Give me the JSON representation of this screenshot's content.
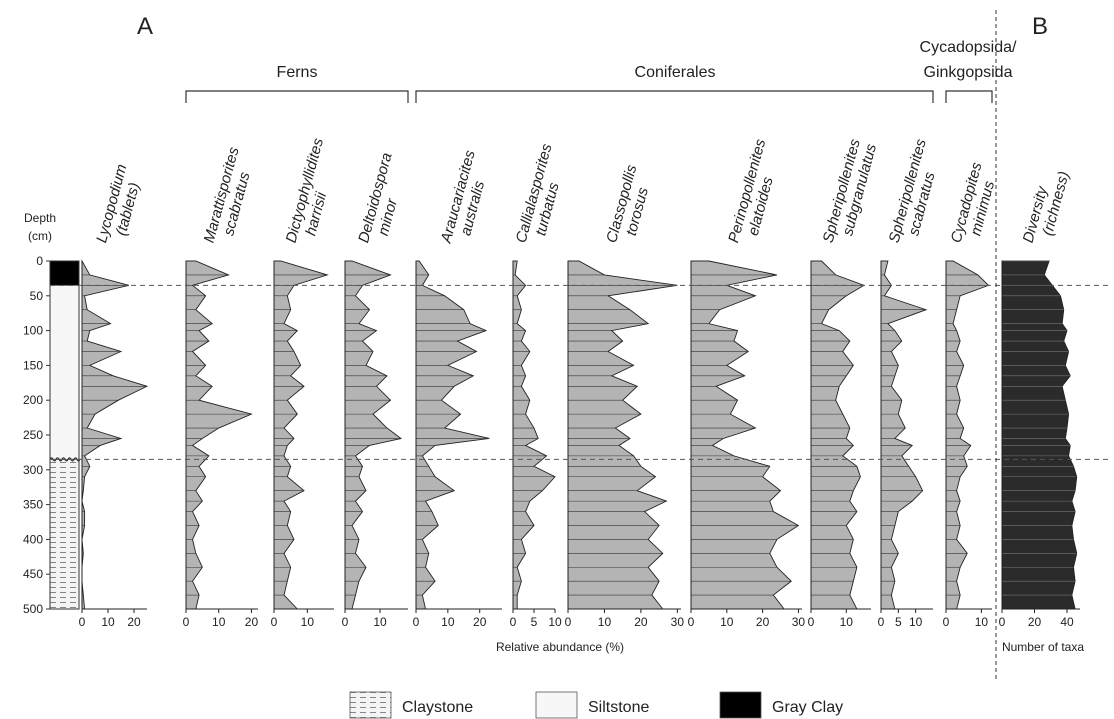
{
  "figure": {
    "panel_a": "A",
    "panel_b": "B",
    "groups": [
      "Ferns",
      "Coniferales",
      "Cycadopsida/\nGinkgopsida"
    ],
    "depth_label": [
      "Depth",
      "(cm)"
    ],
    "x_axis_label": "Relative abundance (%)",
    "diversity_axis_label": "Number of taxa",
    "legend": [
      {
        "label": "Claystone",
        "pattern": "claystone"
      },
      {
        "label": "Siltstone",
        "pattern": "siltstone"
      },
      {
        "label": "Gray Clay",
        "pattern": "gray-clay"
      }
    ],
    "colors": {
      "curve_fill": "#b4b4b4",
      "diversity_fill": "#2b2b2b",
      "hatch": "#555555",
      "gray_clay": "#000000"
    }
  },
  "chart_data": {
    "type": "area",
    "depth_axis": {
      "title": "Depth (cm)",
      "ylim": [
        0,
        500
      ],
      "ticks": [
        0,
        50,
        100,
        150,
        200,
        250,
        300,
        350,
        400,
        450,
        500
      ]
    },
    "depths": [
      0,
      20,
      35,
      50,
      70,
      90,
      100,
      115,
      130,
      150,
      165,
      180,
      200,
      220,
      240,
      255,
      265,
      280,
      295,
      310,
      330,
      345,
      360,
      380,
      400,
      420,
      440,
      460,
      480,
      500
    ],
    "horizons": [
      35,
      285
    ],
    "lithology": [
      {
        "type": "Gray Clay",
        "top": 0,
        "bottom": 35
      },
      {
        "type": "Siltstone",
        "top": 35,
        "bottom": 285
      },
      {
        "type": "Claystone",
        "top": 285,
        "bottom": 500
      }
    ],
    "series": [
      {
        "name": "Lycopodium (tablets)",
        "group": "",
        "xlim": [
          0,
          25
        ],
        "ticks": [
          0,
          10,
          20
        ],
        "values": [
          0,
          3,
          18,
          1,
          2,
          11,
          3,
          2,
          15,
          3,
          12,
          25,
          14,
          5,
          2,
          15,
          7,
          1,
          3,
          1,
          0.5,
          0,
          1,
          1,
          0,
          0.5,
          0,
          0,
          0.5,
          1
        ]
      },
      {
        "name": "Marattisporites scabratus",
        "group": "Ferns",
        "xlim": [
          0,
          22
        ],
        "ticks": [
          0,
          10,
          20
        ],
        "values": [
          3,
          13,
          2,
          6,
          3,
          8,
          4,
          7,
          2,
          6,
          3,
          8,
          4,
          20,
          10,
          5,
          2,
          7,
          4,
          6,
          3,
          5,
          2,
          4,
          2,
          3,
          5,
          2,
          4,
          3
        ]
      },
      {
        "name": "Dictyophyllidites harrisii",
        "group": "Ferns",
        "xlim": [
          0,
          18
        ],
        "ticks": [
          0,
          10
        ],
        "values": [
          2,
          16,
          6,
          4,
          5,
          3,
          7,
          4,
          6,
          8,
          5,
          9,
          4,
          7,
          3,
          6,
          4,
          3,
          5,
          4,
          9,
          3,
          5,
          4,
          6,
          3,
          5,
          4,
          3,
          7
        ]
      },
      {
        "name": "Deltoidospora minor",
        "group": "Ferns",
        "xlim": [
          0,
          18
        ],
        "ticks": [
          0,
          10
        ],
        "values": [
          2,
          13,
          5,
          3,
          7,
          4,
          9,
          5,
          8,
          6,
          12,
          9,
          13,
          8,
          12,
          16,
          7,
          3,
          5,
          4,
          6,
          3,
          5,
          2,
          4,
          3,
          6,
          4,
          3,
          2
        ]
      },
      {
        "name": "Araucariacites australis",
        "group": "Coniferales",
        "xlim": [
          0,
          27
        ],
        "ticks": [
          0,
          10,
          20
        ],
        "values": [
          1,
          4,
          2,
          9,
          15,
          17,
          22,
          13,
          19,
          10,
          18,
          12,
          8,
          14,
          9,
          23,
          6,
          2,
          4,
          6,
          12,
          3,
          5,
          7,
          2,
          4,
          3,
          6,
          2,
          3
        ]
      },
      {
        "name": "Callialasporites turbatus",
        "group": "Coniferales",
        "xlim": [
          0,
          10
        ],
        "ticks": [
          0,
          5,
          10
        ],
        "values": [
          1,
          0.5,
          3,
          1,
          2,
          1,
          3,
          2,
          4,
          2,
          3,
          2,
          4,
          3,
          5,
          6,
          3,
          8,
          5,
          10,
          7,
          4,
          3,
          5,
          2,
          3,
          1,
          2,
          1,
          1
        ]
      },
      {
        "name": "Classopollis torosus",
        "group": "Coniferales",
        "xlim": [
          0,
          31
        ],
        "ticks": [
          0,
          10,
          20,
          30
        ],
        "values": [
          3,
          10,
          30,
          11,
          17,
          22,
          12,
          15,
          11,
          18,
          12,
          19,
          15,
          20,
          13,
          17,
          14,
          18,
          20,
          24,
          19,
          27,
          21,
          25,
          22,
          26,
          22,
          25,
          23,
          26
        ]
      },
      {
        "name": "Perinopollenites elatoides",
        "group": "Coniferales",
        "xlim": [
          0,
          31
        ],
        "ticks": [
          0,
          10,
          20,
          30
        ],
        "values": [
          5,
          24,
          10,
          18,
          8,
          5,
          13,
          12,
          16,
          10,
          15,
          7,
          13,
          11,
          18,
          9,
          6,
          12,
          22,
          20,
          25,
          22,
          23,
          30,
          24,
          22,
          24,
          28,
          23,
          26
        ]
      },
      {
        "name": "Spheripollenites subgranulatus",
        "group": "Coniferales",
        "xlim": [
          0,
          17
        ],
        "ticks": [
          0,
          10
        ],
        "values": [
          3,
          7,
          15,
          10,
          5,
          3,
          8,
          11,
          9,
          12,
          10,
          8,
          7,
          9,
          11,
          10,
          12,
          9,
          13,
          14,
          12,
          11,
          13,
          10,
          12,
          11,
          13,
          12,
          11,
          13
        ]
      },
      {
        "name": "Spheripollenites scabratus",
        "group": "Coniferales",
        "xlim": [
          0,
          15
        ],
        "ticks": [
          0,
          5,
          10
        ],
        "values": [
          2,
          1,
          3,
          1,
          13,
          2,
          4,
          6,
          3,
          5,
          4,
          3,
          6,
          5,
          7,
          4,
          9,
          6,
          8,
          10,
          12,
          9,
          5,
          4,
          3,
          5,
          3,
          4,
          3,
          4
        ]
      },
      {
        "name": "Cycadopites minimus",
        "group": "Cycadopsida/Ginkgopsida",
        "xlim": [
          0,
          13
        ],
        "ticks": [
          0,
          10
        ],
        "values": [
          2,
          9,
          12,
          4,
          3,
          2,
          3,
          4,
          3,
          5,
          4,
          3,
          4,
          3,
          5,
          4,
          7,
          5,
          6,
          4,
          3,
          4,
          3,
          4,
          3,
          6,
          4,
          3,
          4,
          3
        ]
      },
      {
        "name": "Diversity (richness)",
        "group": "",
        "panel": "B",
        "xlim": [
          0,
          48
        ],
        "ticks": [
          0,
          20,
          40
        ],
        "axis_title": "Number of taxa",
        "values": [
          29,
          26,
          31,
          36,
          38,
          37,
          40,
          38,
          41,
          39,
          42,
          37,
          39,
          41,
          40,
          39,
          42,
          41,
          44,
          46,
          45,
          43,
          45,
          43,
          44,
          46,
          44,
          45,
          43,
          45
        ]
      }
    ]
  }
}
